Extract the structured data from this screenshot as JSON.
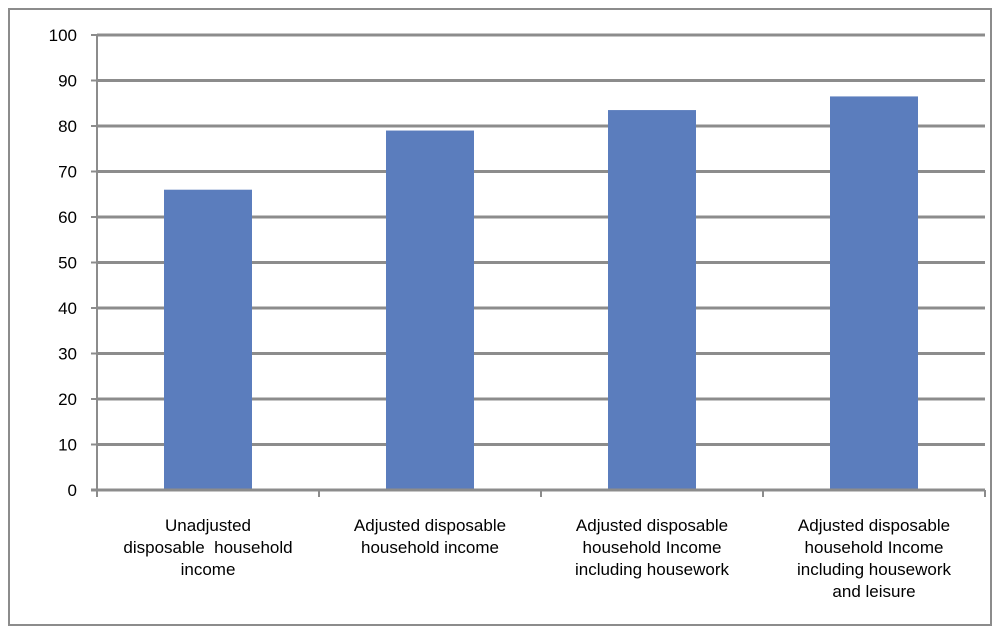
{
  "chart_data": {
    "type": "bar",
    "categories": [
      [
        "Unadjusted",
        "disposable  household",
        "income"
      ],
      [
        "Adjusted disposable",
        "household income"
      ],
      [
        "Adjusted disposable",
        "household Income",
        "including housework"
      ],
      [
        "Adjusted disposable",
        "household Income",
        "including housework",
        "and leisure"
      ]
    ],
    "values": [
      66,
      79,
      83.5,
      86.5
    ],
    "ylim": [
      0,
      100
    ],
    "yticks": [
      0,
      10,
      20,
      30,
      40,
      50,
      60,
      70,
      80,
      90,
      100
    ],
    "grid": true,
    "bar_color": "#5b7dbd",
    "grid_color": "#8c8c8c",
    "axis_color": "#8c8c8c"
  }
}
